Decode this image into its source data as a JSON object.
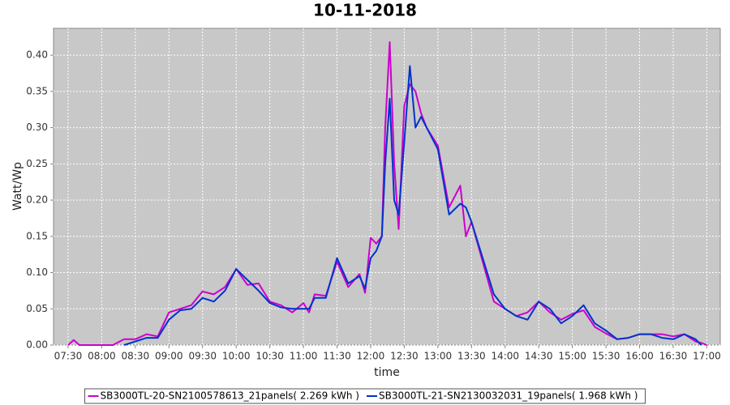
{
  "chart_data": {
    "type": "line",
    "title": "10-11-2018",
    "x_label": "time",
    "y_label": "Watt/Wp",
    "x": [
      "07:30",
      "07:35",
      "07:40",
      "07:50",
      "08:00",
      "08:10",
      "08:20",
      "08:30",
      "08:40",
      "08:50",
      "09:00",
      "09:10",
      "09:20",
      "09:30",
      "09:40",
      "09:50",
      "10:00",
      "10:10",
      "10:20",
      "10:30",
      "10:40",
      "10:50",
      "11:00",
      "11:05",
      "11:10",
      "11:20",
      "11:30",
      "11:40",
      "11:50",
      "11:55",
      "12:00",
      "12:05",
      "12:10",
      "12:13",
      "12:17",
      "12:21",
      "12:25",
      "12:30",
      "12:35",
      "12:40",
      "12:45",
      "12:50",
      "13:00",
      "13:10",
      "13:20",
      "13:25",
      "13:30",
      "13:40",
      "13:50",
      "14:00",
      "14:10",
      "14:20",
      "14:30",
      "14:40",
      "14:50",
      "15:00",
      "15:10",
      "15:20",
      "15:30",
      "15:40",
      "15:50",
      "16:00",
      "16:10",
      "16:20",
      "16:30",
      "16:40",
      "16:50",
      "16:55",
      "17:00"
    ],
    "series": [
      {
        "name": "SB3000TL-20-SN2100578613_21panels( 2.269 kWh )",
        "color": "#cc00cc",
        "values": [
          0,
          0.007,
          0,
          0,
          0,
          0,
          0.008,
          0.008,
          0.015,
          0.012,
          0.045,
          0.05,
          0.055,
          0.074,
          0.07,
          0.08,
          0.105,
          0.083,
          0.085,
          0.06,
          0.055,
          0.045,
          0.058,
          0.045,
          0.07,
          0.068,
          0.115,
          0.08,
          0.098,
          0.072,
          0.148,
          0.14,
          0.15,
          0.3,
          0.418,
          0.25,
          0.16,
          0.33,
          0.36,
          0.35,
          0.32,
          0.3,
          0.275,
          0.19,
          0.22,
          0.15,
          0.17,
          0.115,
          0.06,
          0.05,
          0.04,
          0.045,
          0.06,
          0.045,
          0.035,
          0.043,
          0.048,
          0.025,
          0.016,
          0.008,
          0.01,
          0.015,
          0.015,
          0.015,
          0.012,
          0.015,
          0.005,
          0.003,
          0
        ]
      },
      {
        "name": "SB3000TL-21-SN2130032031_19panels( 1.968 kWh )",
        "color": "#0033cc",
        "values": [
          null,
          null,
          null,
          null,
          null,
          null,
          0,
          0.005,
          0.01,
          0.01,
          0.035,
          0.048,
          0.05,
          0.065,
          0.06,
          0.075,
          0.105,
          0.09,
          0.075,
          0.058,
          0.052,
          0.05,
          0.05,
          0.05,
          0.065,
          0.065,
          0.12,
          0.085,
          0.095,
          0.078,
          0.12,
          0.13,
          0.15,
          0.25,
          0.34,
          0.2,
          0.18,
          0.28,
          0.385,
          0.3,
          0.315,
          0.3,
          0.27,
          0.18,
          0.195,
          0.19,
          0.17,
          0.12,
          0.07,
          0.05,
          0.04,
          0.035,
          0.06,
          0.05,
          0.03,
          0.04,
          0.055,
          0.03,
          0.02,
          0.008,
          0.01,
          0.015,
          0.015,
          0.01,
          0.008,
          0.015,
          0.008,
          0,
          null
        ]
      }
    ],
    "xlim": [
      "07:17",
      "17:12"
    ],
    "xticks": [
      "07:30",
      "08:00",
      "08:30",
      "09:00",
      "09:30",
      "10:00",
      "10:30",
      "11:00",
      "11:30",
      "12:00",
      "12:30",
      "13:00",
      "13:30",
      "14:00",
      "14:30",
      "15:00",
      "15:30",
      "16:00",
      "16:30",
      "17:00"
    ],
    "ylim": [
      0,
      0.437
    ],
    "yticks": [
      {
        "value": 0,
        "label": "0.00"
      },
      {
        "value": 0.05,
        "label": "0.05"
      },
      {
        "value": 0.1,
        "label": "0.10"
      },
      {
        "value": 0.15,
        "label": "0.15"
      },
      {
        "value": 0.2,
        "label": "0.20"
      },
      {
        "value": 0.25,
        "label": "0.25"
      },
      {
        "value": 0.3,
        "label": "0.30"
      },
      {
        "value": 0.35,
        "label": "0.35"
      },
      {
        "value": 0.4,
        "label": "0.40"
      }
    ],
    "grid": true,
    "plot_background": "#c8c8c8",
    "legend": "bottom"
  }
}
